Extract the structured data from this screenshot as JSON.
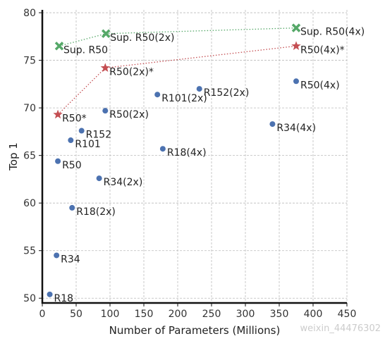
{
  "chart_data": {
    "type": "scatter",
    "x_label": "Number of Parameters (Millions)",
    "y_label": "Top 1",
    "watermark": "weixin_44476302",
    "xlim": [
      0,
      450
    ],
    "xticks": [
      0,
      50,
      100,
      150,
      200,
      250,
      300,
      350,
      400,
      450
    ],
    "ylim": [
      49.5,
      80.3
    ],
    "yticks": [
      50,
      55,
      60,
      65,
      70,
      75,
      80
    ],
    "grid": true,
    "series": [
      {
        "color": "#4c72b0",
        "marker": "circle",
        "line": false,
        "x": [
          11,
          21,
          23,
          42,
          58,
          44,
          84,
          93,
          170,
          232,
          178,
          340,
          375
        ],
        "values": [
          50.4,
          54.5,
          64.4,
          66.6,
          67.6,
          59.5,
          62.6,
          69.7,
          71.4,
          72.0,
          65.7,
          68.3,
          72.8
        ],
        "labels": [
          "R18",
          "R34",
          "R50",
          "R101",
          "R152",
          "R18(2x)",
          "R34(2x)",
          "R50(2x)",
          "R101(2x)",
          "R152(2x)",
          "R18(4x)",
          "R34(4x)",
          "R50(4x)"
        ]
      },
      {
        "color": "#c44e52",
        "marker": "star",
        "line": true,
        "x": [
          23,
          93,
          375
        ],
        "values": [
          69.3,
          74.2,
          76.5
        ],
        "labels": [
          "R50*",
          "R50(2x)*",
          "R50(4x)*"
        ]
      },
      {
        "color": "#55a868",
        "marker": "x",
        "line": true,
        "x": [
          25,
          94,
          375
        ],
        "values": [
          76.5,
          77.8,
          78.4
        ],
        "labels": [
          "Sup. R50",
          "Sup. R50(2x)",
          "Sup. R50(4x)"
        ]
      }
    ]
  }
}
